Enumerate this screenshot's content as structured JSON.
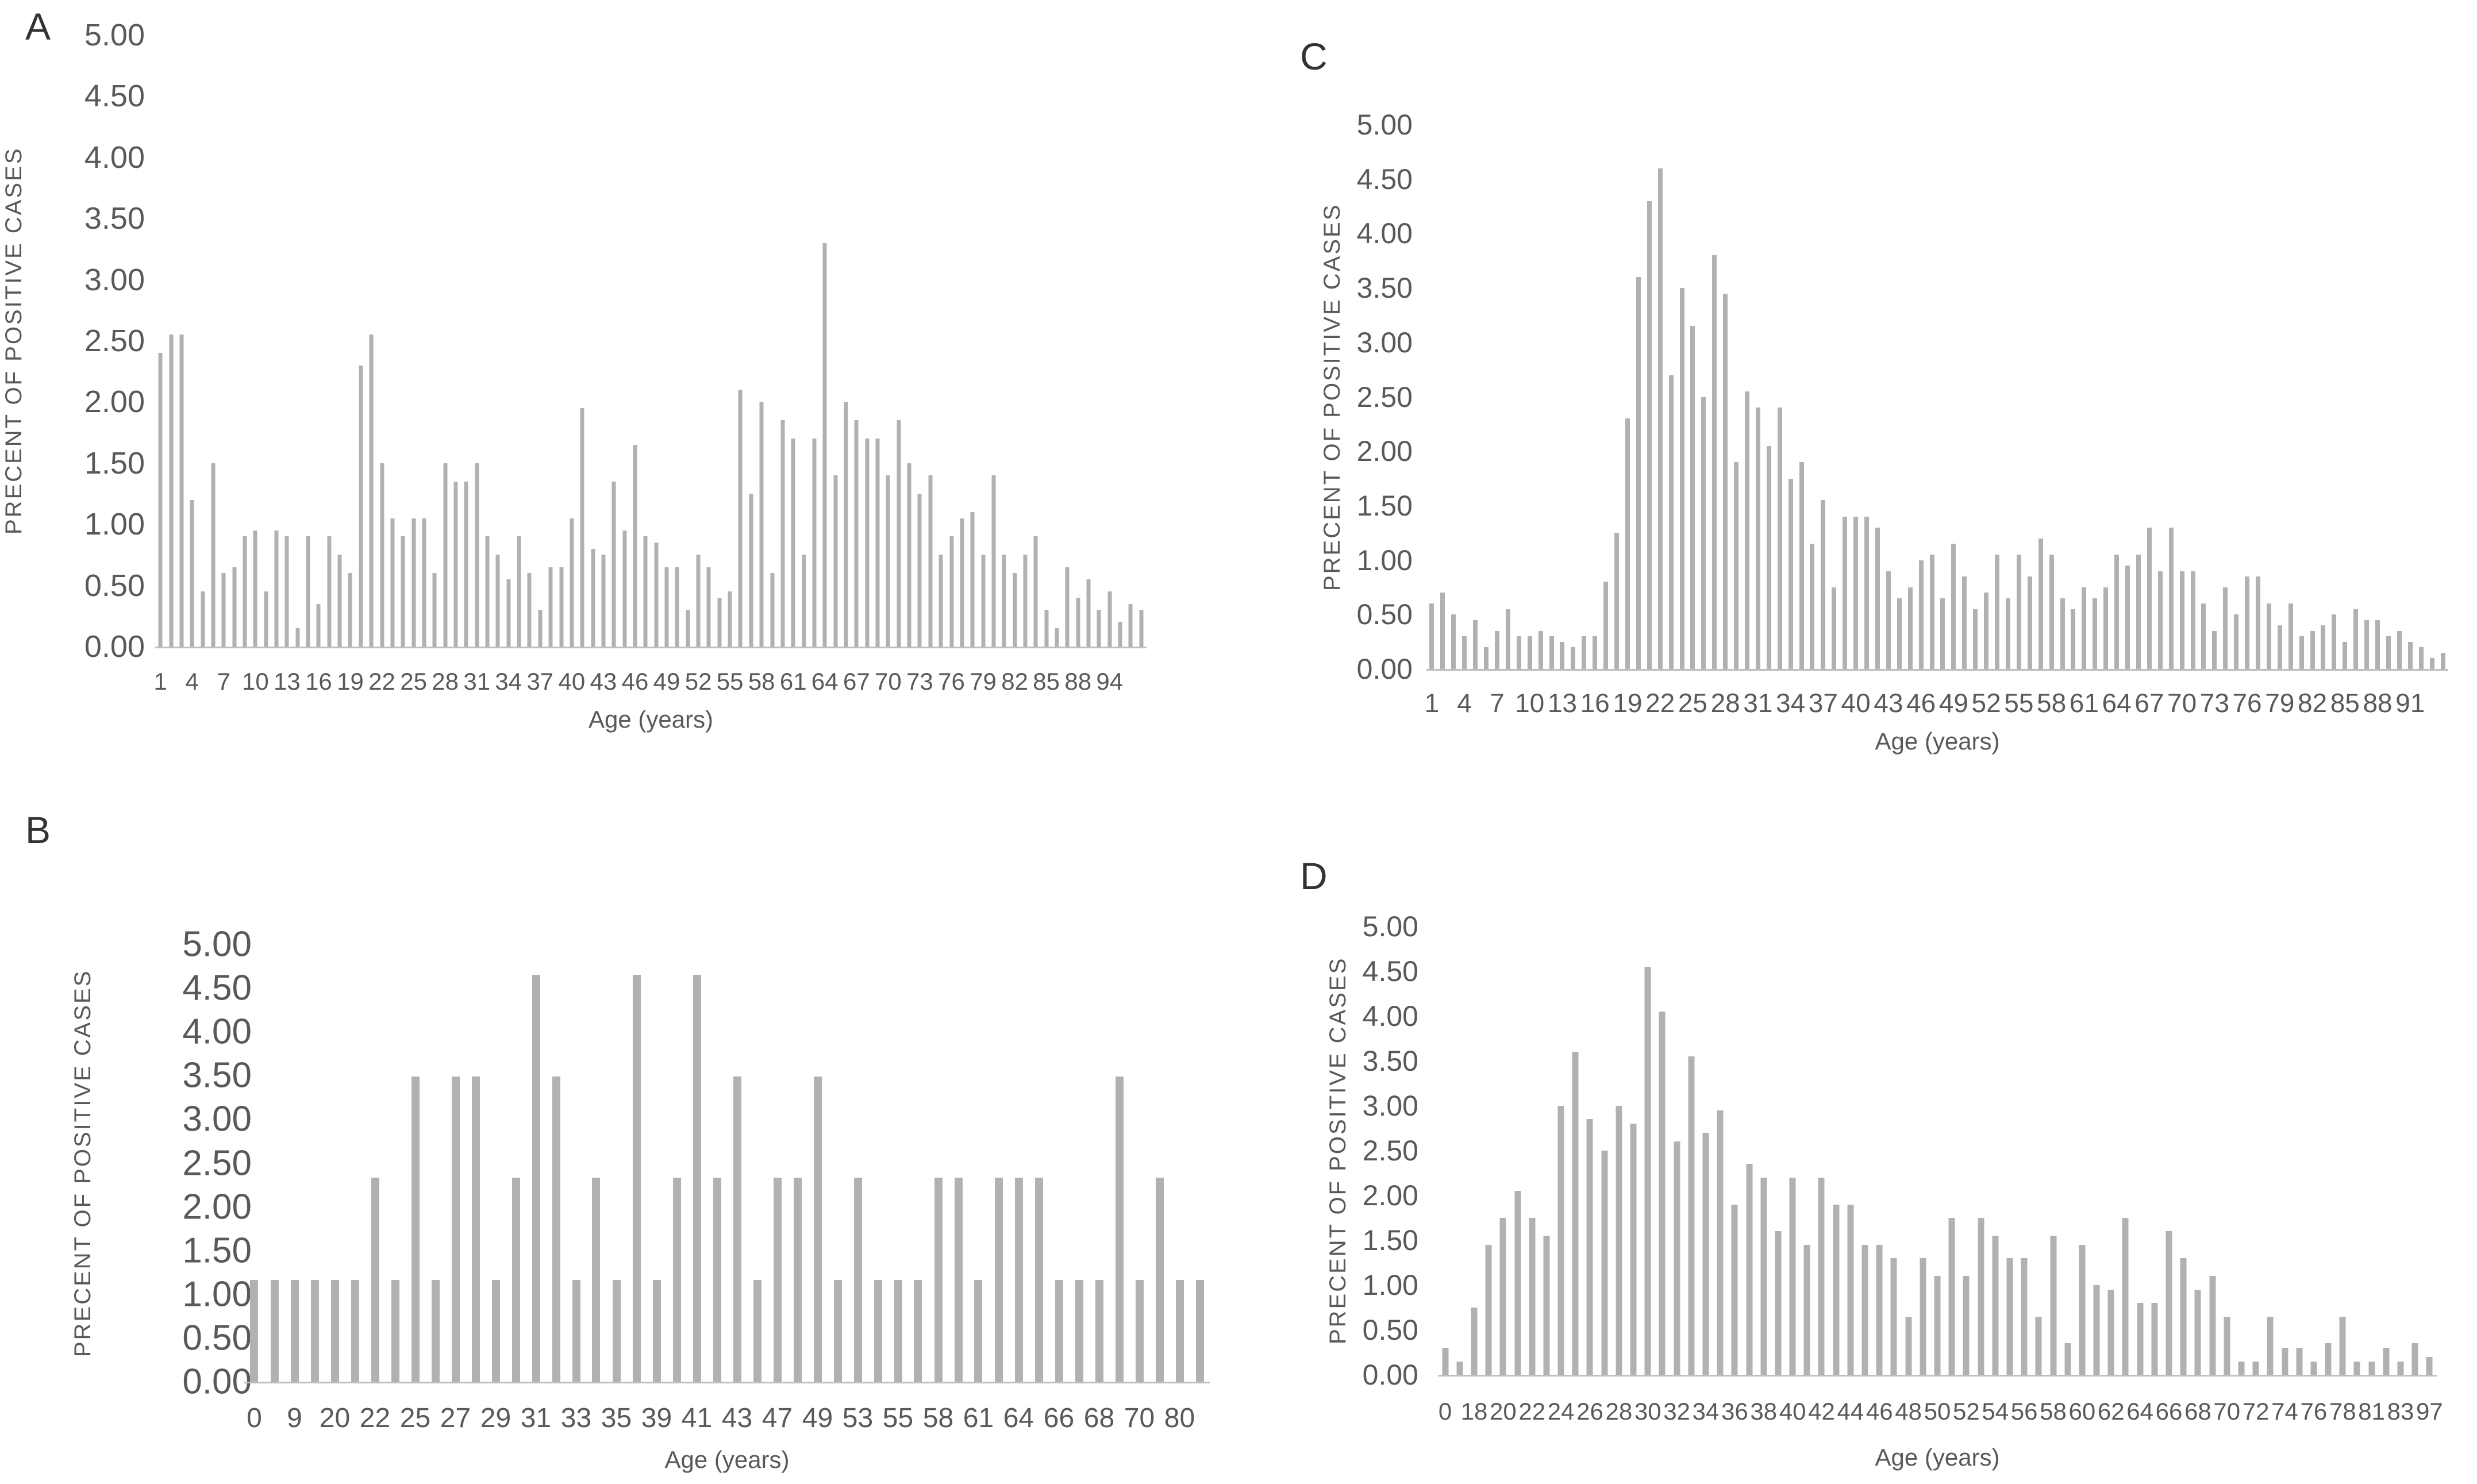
{
  "figure": {
    "background": "#ffffff",
    "bar_color": "#b1b1b1",
    "axis_line_color": "#bfbfbf",
    "text_color": "#595959",
    "panel_letter_color": "#333333"
  },
  "chart_data": [
    {
      "panel": "A",
      "type": "bar",
      "title": "",
      "ylabel": "PRECENT OF POSITIVE CASES",
      "xlabel": "Age (years)",
      "ylim": [
        0,
        5
      ],
      "grid": false,
      "legend": "none",
      "ytick_labels": [
        "5.00",
        "4.50",
        "4.00",
        "3.50",
        "3.00",
        "2.50",
        "2.00",
        "1.50",
        "1.00",
        "0.50",
        "0.00"
      ],
      "xtick_step": 3,
      "xtick_labels": [
        "1",
        "4",
        "7",
        "10",
        "13",
        "16",
        "19",
        "22",
        "25",
        "28",
        "31",
        "34",
        "37",
        "40",
        "43",
        "46",
        "49",
        "52",
        "55",
        "58",
        "61",
        "64",
        "67",
        "70",
        "73",
        "76",
        "79",
        "82",
        "85",
        "88",
        "94"
      ],
      "values": [
        2.4,
        2.55,
        2.55,
        1.2,
        0.45,
        1.5,
        0.6,
        0.65,
        0.9,
        0.95,
        0.45,
        0.95,
        0.9,
        0.15,
        0.9,
        0.35,
        0.9,
        0.75,
        0.6,
        2.3,
        2.55,
        1.5,
        1.05,
        0.9,
        1.05,
        1.05,
        0.6,
        1.5,
        1.35,
        1.35,
        1.5,
        0.9,
        0.75,
        0.55,
        0.9,
        0.6,
        0.3,
        0.65,
        0.65,
        1.05,
        1.95,
        0.8,
        0.75,
        1.35,
        0.95,
        1.65,
        0.9,
        0.85,
        0.65,
        0.65,
        0.3,
        0.75,
        0.65,
        0.4,
        0.45,
        2.1,
        1.25,
        2.0,
        0.6,
        1.85,
        1.7,
        0.75,
        1.7,
        3.3,
        1.4,
        2.0,
        1.85,
        1.7,
        1.7,
        1.4,
        1.85,
        1.5,
        1.25,
        1.4,
        0.75,
        0.9,
        1.05,
        1.1,
        0.75,
        1.4,
        0.75,
        0.6,
        0.75,
        0.9,
        0.3,
        0.15,
        0.65,
        0.4,
        0.55,
        0.3,
        0.45,
        0.2,
        0.35,
        0.3
      ]
    },
    {
      "panel": "B",
      "type": "bar",
      "title": "",
      "ylabel": "PRECENT OF POSITIVE CASES",
      "xlabel": "Age (years)",
      "ylim": [
        0,
        5
      ],
      "grid": false,
      "legend": "none",
      "ytick_labels": [
        "5.00",
        "4.50",
        "4.00",
        "3.50",
        "3.00",
        "2.50",
        "2.00",
        "1.50",
        "1.00",
        "0.50",
        "0.00"
      ],
      "xtick_step": 2,
      "xtick_labels": [
        "0",
        "9",
        "20",
        "22",
        "25",
        "27",
        "29",
        "31",
        "33",
        "35",
        "39",
        "41",
        "43",
        "47",
        "49",
        "53",
        "55",
        "58",
        "61",
        "64",
        "66",
        "68",
        "70",
        "80"
      ],
      "values": [
        1.16,
        1.16,
        1.16,
        1.16,
        1.16,
        1.16,
        2.33,
        1.16,
        3.49,
        1.16,
        3.49,
        3.49,
        1.16,
        2.33,
        4.65,
        3.49,
        1.16,
        2.33,
        1.16,
        4.65,
        1.16,
        2.33,
        4.65,
        2.33,
        3.49,
        1.16,
        2.33,
        2.33,
        3.49,
        1.16,
        2.33,
        1.16,
        1.16,
        1.16,
        2.33,
        2.33,
        1.16,
        2.33,
        2.33,
        2.33,
        1.16,
        1.16,
        1.16,
        3.49,
        1.16,
        2.33,
        1.16,
        1.16
      ]
    },
    {
      "panel": "C",
      "type": "bar",
      "title": "",
      "ylabel": "PRECENT OF POSITIVE CASES",
      "xlabel": "Age (years)",
      "ylim": [
        0,
        5
      ],
      "grid": false,
      "legend": "none",
      "ytick_labels": [
        "5.00",
        "4.50",
        "4.00",
        "3.50",
        "3.00",
        "2.50",
        "2.00",
        "1.50",
        "1.00",
        "0.50",
        "0.00"
      ],
      "xtick_step": 3,
      "xtick_labels": [
        "1",
        "4",
        "7",
        "10",
        "13",
        "16",
        "19",
        "22",
        "25",
        "28",
        "31",
        "34",
        "37",
        "40",
        "43",
        "46",
        "49",
        "52",
        "55",
        "58",
        "61",
        "64",
        "67",
        "70",
        "73",
        "76",
        "79",
        "82",
        "85",
        "88",
        "91"
      ],
      "values": [
        0.6,
        0.7,
        0.5,
        0.3,
        0.45,
        0.2,
        0.35,
        0.55,
        0.3,
        0.3,
        0.35,
        0.3,
        0.25,
        0.2,
        0.3,
        0.3,
        0.8,
        1.25,
        2.3,
        3.6,
        4.3,
        4.6,
        2.7,
        3.5,
        3.15,
        2.5,
        3.8,
        3.45,
        1.9,
        2.55,
        2.4,
        2.05,
        2.4,
        1.75,
        1.9,
        1.15,
        1.55,
        0.75,
        1.4,
        1.4,
        1.4,
        1.3,
        0.9,
        0.65,
        0.75,
        1.0,
        1.05,
        0.65,
        1.15,
        0.85,
        0.55,
        0.7,
        1.05,
        0.65,
        1.05,
        0.85,
        1.2,
        1.05,
        0.65,
        0.55,
        0.75,
        0.65,
        0.75,
        1.05,
        0.95,
        1.05,
        1.3,
        0.9,
        1.3,
        0.9,
        0.9,
        0.6,
        0.35,
        0.75,
        0.5,
        0.85,
        0.85,
        0.6,
        0.4,
        0.6,
        0.3,
        0.35,
        0.4,
        0.5,
        0.25,
        0.55,
        0.45,
        0.45,
        0.3,
        0.35,
        0.25,
        0.2,
        0.1,
        0.15
      ]
    },
    {
      "panel": "D",
      "type": "bar",
      "title": "",
      "ylabel": "PRECENT OF POSITIVE CASES",
      "xlabel": "Age (years)",
      "ylim": [
        0,
        5
      ],
      "grid": false,
      "legend": "none",
      "ytick_labels": [
        "5.00",
        "4.50",
        "4.00",
        "3.50",
        "3.00",
        "2.50",
        "2.00",
        "1.50",
        "1.00",
        "0.50",
        "0.00"
      ],
      "xtick_step": 2,
      "xtick_labels": [
        "0",
        "18",
        "20",
        "22",
        "24",
        "26",
        "28",
        "30",
        "32",
        "34",
        "36",
        "38",
        "40",
        "42",
        "44",
        "46",
        "48",
        "50",
        "52",
        "54",
        "56",
        "58",
        "60",
        "62",
        "64",
        "66",
        "68",
        "70",
        "72",
        "74",
        "76",
        "78",
        "81",
        "83",
        "97"
      ],
      "values": [
        0.3,
        0.15,
        0.75,
        1.45,
        1.75,
        2.05,
        1.75,
        1.55,
        3.0,
        3.6,
        2.85,
        2.5,
        3.0,
        2.8,
        4.55,
        4.05,
        2.6,
        3.55,
        2.7,
        2.95,
        1.9,
        2.35,
        2.2,
        1.6,
        2.2,
        1.45,
        2.2,
        1.9,
        1.9,
        1.45,
        1.45,
        1.3,
        0.65,
        1.3,
        1.1,
        1.75,
        1.1,
        1.75,
        1.55,
        1.3,
        1.3,
        0.65,
        1.55,
        0.35,
        1.45,
        1.0,
        0.95,
        1.75,
        0.8,
        0.8,
        1.6,
        1.3,
        0.95,
        1.1,
        0.65,
        0.15,
        0.15,
        0.65,
        0.3,
        0.3,
        0.15,
        0.35,
        0.65,
        0.15,
        0.15,
        0.3,
        0.15,
        0.35,
        0.2
      ]
    }
  ]
}
